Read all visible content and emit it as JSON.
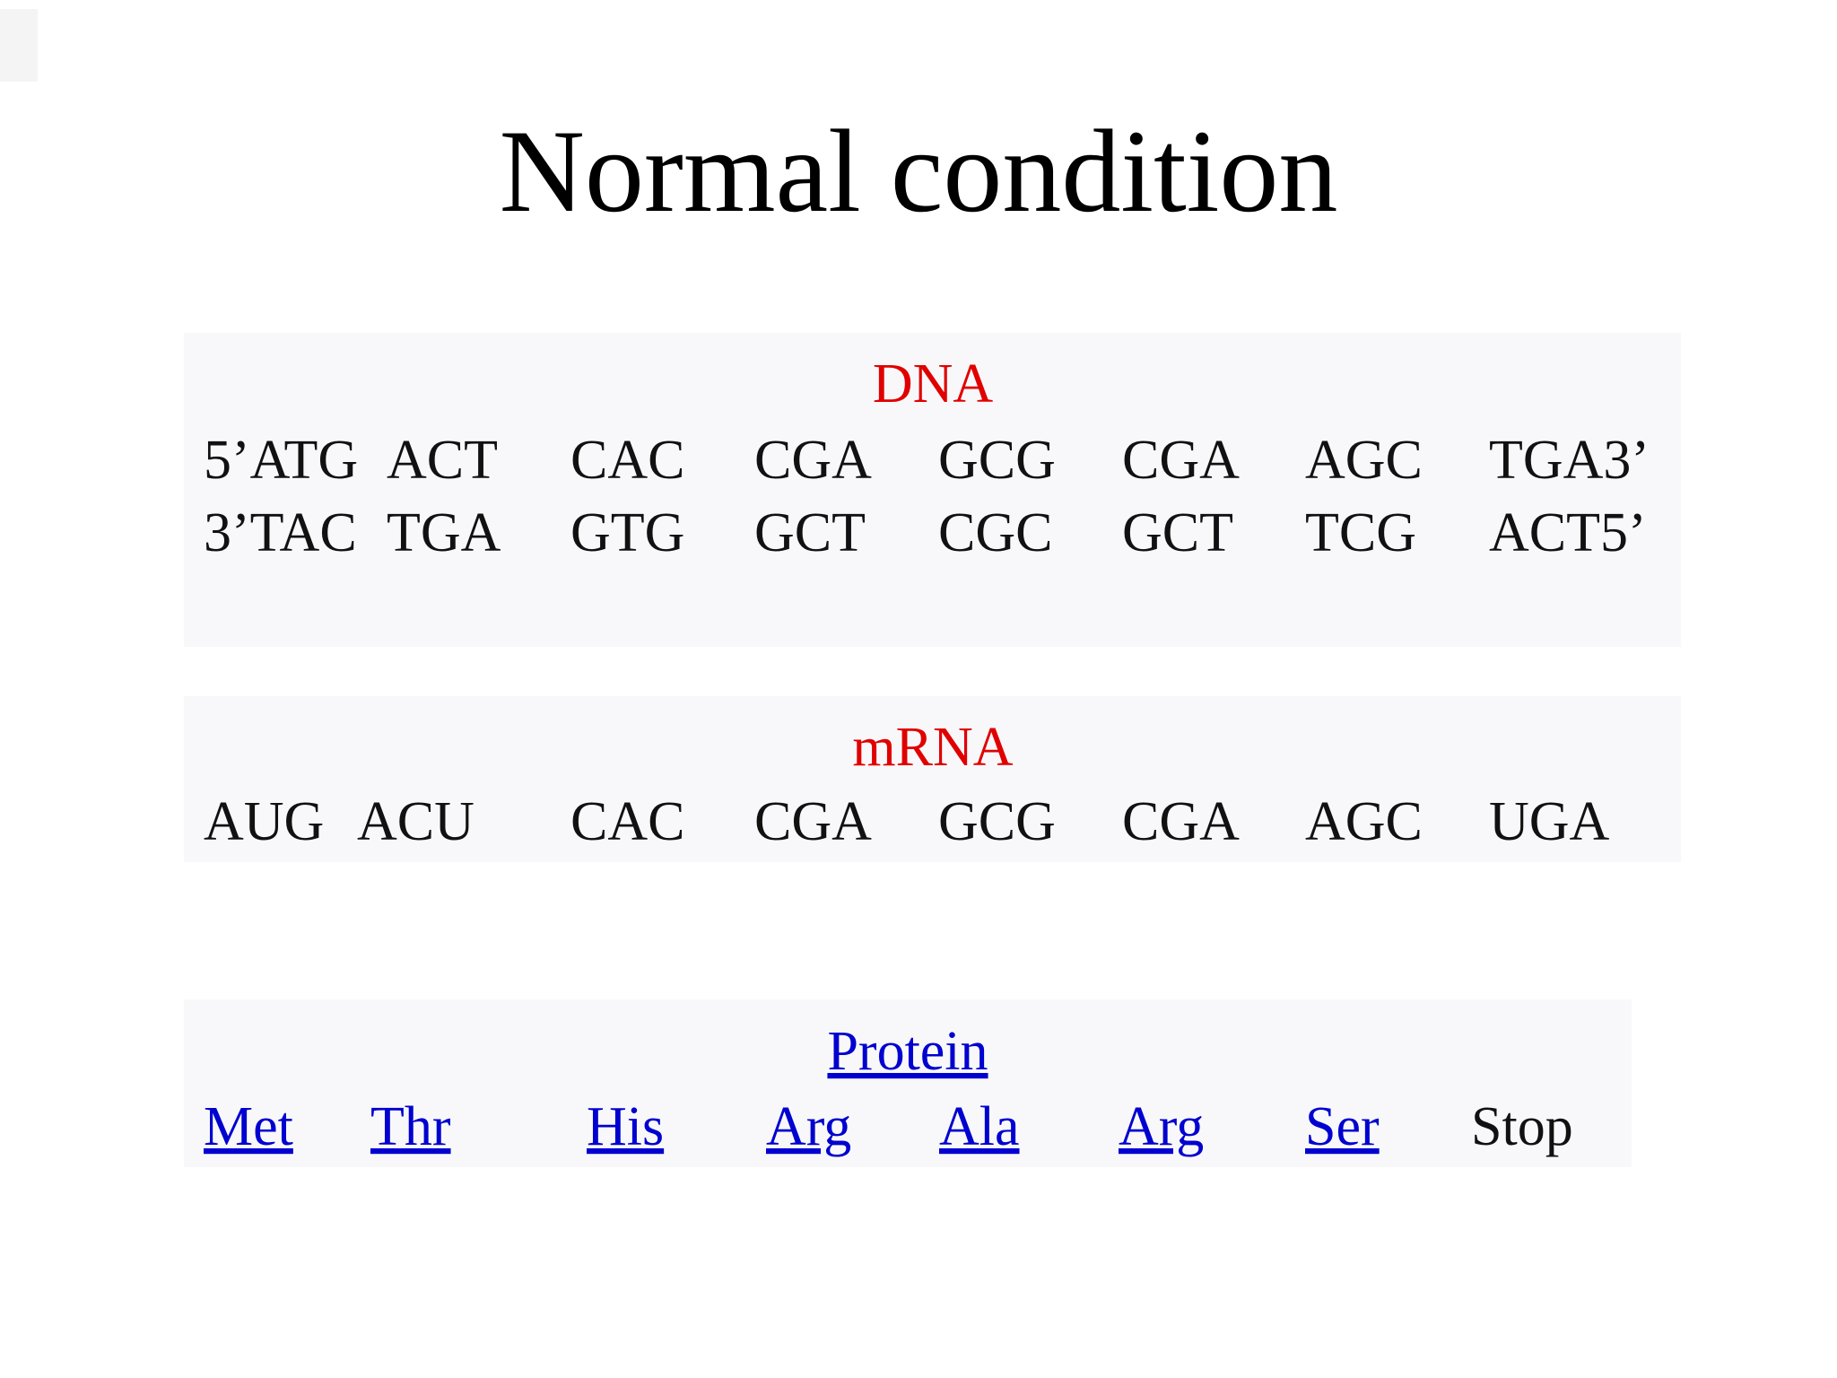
{
  "title": "Normal condition",
  "dna": {
    "label": "DNA",
    "strands": [
      [
        "5’ATG",
        "ACT",
        "CAC",
        "CGA",
        "GCG",
        "CGA",
        "AGC",
        "TGA3’"
      ],
      [
        "3’TAC",
        "TGA",
        "GTG",
        "GCT",
        "CGC",
        "GCT",
        "TCG",
        "ACT5’"
      ]
    ]
  },
  "mrna": {
    "label": "mRNA",
    "codons": [
      "AUG",
      "ACU",
      "CAC",
      "CGA",
      "GCG",
      "CGA",
      "AGC",
      "UGA"
    ]
  },
  "protein": {
    "label": "Protein",
    "amino_acids": [
      "Met",
      "Thr",
      "His",
      "Arg",
      "Ala",
      "Arg",
      "Ser",
      "Stop"
    ]
  }
}
